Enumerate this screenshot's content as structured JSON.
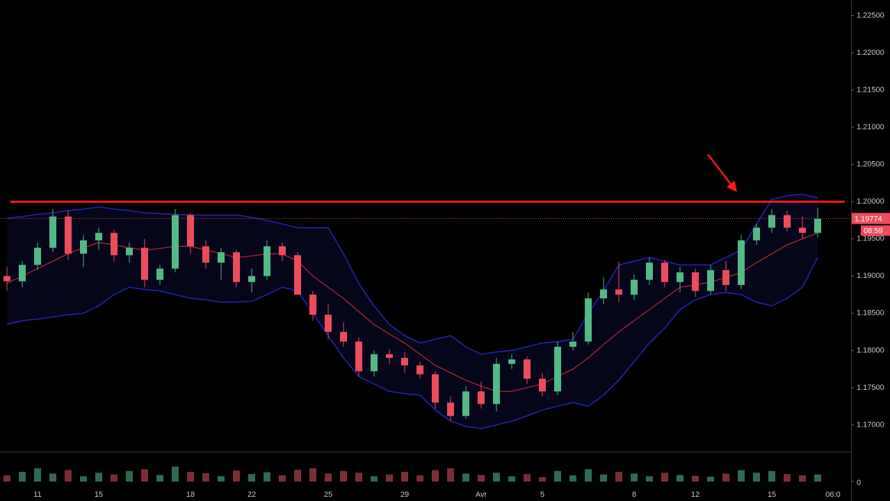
{
  "chart_data": {
    "type": "candlestick",
    "categories": [
      null,
      null,
      "11",
      null,
      null,
      null,
      "15",
      null,
      null,
      null,
      null,
      null,
      "18",
      null,
      null,
      null,
      "22",
      null,
      null,
      null,
      null,
      "25",
      null,
      null,
      null,
      null,
      "29",
      null,
      null,
      null,
      null,
      "Avr",
      null,
      null,
      null,
      "5",
      null,
      null,
      null,
      null,
      null,
      "8",
      null,
      null,
      null,
      "12",
      null,
      null,
      null,
      null,
      "15",
      null,
      null,
      null,
      "06:0"
    ],
    "open": [
      1.19,
      1.1893,
      1.1915,
      1.1938,
      1.198,
      1.193,
      1.1948,
      1.1958,
      1.1928,
      1.1938,
      1.1895,
      1.191,
      1.1982,
      1.194,
      1.1918,
      1.1932,
      1.1892,
      1.19,
      1.194,
      1.1928,
      1.1875,
      1.1848,
      1.1825,
      1.1812,
      1.1772,
      1.1795,
      1.179,
      1.178,
      1.1768,
      1.173,
      1.1712,
      1.1745,
      1.1728,
      1.1782,
      1.1788,
      1.1762,
      1.1745,
      1.1805,
      1.1812,
      1.187,
      1.1882,
      1.1875,
      1.1895,
      1.1918,
      1.1892,
      1.1905,
      1.188,
      1.1908,
      1.1888,
      1.1948,
      1.1965,
      1.1982,
      1.1965,
      1.1958,
      null
    ],
    "high": [
      1.1912,
      1.192,
      1.1945,
      1.199,
      1.1988,
      1.1955,
      1.1965,
      1.1962,
      1.1945,
      1.195,
      1.1915,
      1.199,
      1.1985,
      1.1948,
      1.1938,
      1.1935,
      1.191,
      1.1948,
      1.1945,
      1.1932,
      1.188,
      1.1862,
      1.1838,
      1.1818,
      1.18,
      1.1802,
      1.1798,
      1.1785,
      1.1772,
      1.1738,
      1.1752,
      1.1758,
      1.179,
      1.1795,
      1.1792,
      1.177,
      1.1812,
      1.1825,
      1.1878,
      1.1898,
      1.192,
      1.1902,
      1.1925,
      1.1922,
      1.1912,
      1.191,
      1.1915,
      1.192,
      1.1955,
      1.197,
      1.199,
      1.1988,
      1.198,
      1.1992,
      null
    ],
    "low": [
      1.188,
      1.1885,
      1.1908,
      1.1932,
      1.1922,
      1.1912,
      1.1935,
      1.192,
      1.1918,
      1.1885,
      1.1888,
      1.1905,
      1.193,
      1.191,
      1.1895,
      1.1885,
      1.1878,
      1.1895,
      1.192,
      1.188,
      1.184,
      1.1815,
      1.1805,
      1.1765,
      1.1765,
      1.1782,
      1.177,
      1.1762,
      1.1722,
      1.1705,
      1.1708,
      1.1722,
      1.1718,
      1.1775,
      1.1755,
      1.1738,
      1.174,
      1.18,
      1.1808,
      1.1862,
      1.1865,
      1.1868,
      1.1888,
      1.1885,
      1.1878,
      1.1872,
      1.1875,
      1.188,
      1.1882,
      1.1942,
      1.1958,
      1.196,
      1.195,
      1.1952,
      null
    ],
    "close": [
      1.1893,
      1.1915,
      1.1938,
      1.198,
      1.193,
      1.1948,
      1.1958,
      1.1928,
      1.1938,
      1.1895,
      1.191,
      1.1982,
      1.194,
      1.1918,
      1.1932,
      1.1892,
      1.19,
      1.194,
      1.1928,
      1.1875,
      1.1848,
      1.1825,
      1.1812,
      1.1772,
      1.1795,
      1.179,
      1.178,
      1.1768,
      1.173,
      1.1712,
      1.1745,
      1.1728,
      1.1782,
      1.1788,
      1.1762,
      1.1745,
      1.1805,
      1.1812,
      1.187,
      1.1882,
      1.1875,
      1.1895,
      1.1918,
      1.1892,
      1.1905,
      1.188,
      1.1908,
      1.1888,
      1.1948,
      1.1965,
      1.1982,
      1.1965,
      1.1958,
      1.1977,
      null
    ],
    "up_color": "#53b987",
    "down_color": "#eb4d5c",
    "ylim": [
      1.1664,
      1.2271
    ],
    "yticks": [
      {
        "value": 1.17,
        "label": "1.17000"
      },
      {
        "value": 1.175,
        "label": "1.17500"
      },
      {
        "value": 1.18,
        "label": "1.18000"
      },
      {
        "value": 1.185,
        "label": "1.18500"
      },
      {
        "value": 1.19,
        "label": "1.19000"
      },
      {
        "value": 1.195,
        "label": "1.19500"
      },
      {
        "value": 1.2,
        "label": "1.20000"
      },
      {
        "value": 1.205,
        "label": "1.20500"
      },
      {
        "value": 1.21,
        "label": "1.21000"
      },
      {
        "value": 1.215,
        "label": "1.21500"
      },
      {
        "value": 1.22,
        "label": "1.22000"
      },
      {
        "value": 1.225,
        "label": "1.22500"
      }
    ],
    "bollinger": {
      "upper": [
        1.1978,
        1.198,
        1.1983,
        1.1985,
        1.1988,
        1.199,
        1.1993,
        1.199,
        1.1988,
        1.1985,
        1.1984,
        1.1983,
        1.1982,
        1.1982,
        1.1982,
        1.1982,
        1.1979,
        1.1975,
        1.197,
        1.1965,
        1.1965,
        1.1965,
        1.193,
        1.189,
        1.186,
        1.1835,
        1.182,
        1.181,
        1.1815,
        1.182,
        1.1805,
        1.1795,
        1.1798,
        1.18,
        1.1805,
        1.181,
        1.1812,
        1.1815,
        1.185,
        1.188,
        1.1915,
        1.192,
        1.1925,
        1.192,
        1.1915,
        1.1915,
        1.1915,
        1.1925,
        1.1935,
        1.197,
        1.2003,
        1.2008,
        1.201,
        1.2005,
        null
      ],
      "middle": [
        1.189,
        1.19,
        1.191,
        1.192,
        1.193,
        1.1938,
        1.1945,
        1.1942,
        1.1938,
        1.1935,
        1.1937,
        1.194,
        1.194,
        1.1935,
        1.193,
        1.1925,
        1.1927,
        1.193,
        1.193,
        1.192,
        1.19,
        1.1885,
        1.187,
        1.1852,
        1.1835,
        1.1822,
        1.181,
        1.1795,
        1.178,
        1.177,
        1.176,
        1.1752,
        1.1745,
        1.1745,
        1.175,
        1.1755,
        1.1765,
        1.1775,
        1.179,
        1.1808,
        1.1825,
        1.184,
        1.1855,
        1.187,
        1.1885,
        1.1888,
        1.1892,
        1.1898,
        1.1905,
        1.1918,
        1.193,
        1.1942,
        1.195,
        1.1958,
        null
      ],
      "lower": [
        1.1835,
        1.184,
        1.1842,
        1.1845,
        1.1848,
        1.185,
        1.186,
        1.1875,
        1.1885,
        1.1882,
        1.188,
        1.1875,
        1.187,
        1.1868,
        1.1865,
        1.1865,
        1.1866,
        1.1875,
        1.1885,
        1.188,
        1.185,
        1.182,
        1.179,
        1.1765,
        1.1755,
        1.1745,
        1.1742,
        1.174,
        1.172,
        1.1705,
        1.1698,
        1.1695,
        1.17,
        1.1705,
        1.1712,
        1.172,
        1.1725,
        1.173,
        1.1725,
        1.174,
        1.176,
        1.1785,
        1.181,
        1.183,
        1.1855,
        1.1868,
        1.1875,
        1.1878,
        1.1875,
        1.1865,
        1.186,
        1.187,
        1.1885,
        1.1925,
        null
      ],
      "band_color": "#2525b8",
      "middle_color": "#b3262b"
    },
    "volume": {
      "values": [
        14,
        22,
        30,
        18,
        26,
        12,
        20,
        16,
        24,
        28,
        15,
        34,
        22,
        19,
        12,
        25,
        17,
        21,
        14,
        27,
        30,
        18,
        24,
        20,
        12,
        16,
        22,
        14,
        26,
        30,
        18,
        15,
        20,
        12,
        17,
        10,
        24,
        14,
        28,
        16,
        22,
        18,
        12,
        20,
        15,
        13,
        11,
        18,
        26,
        20,
        24,
        17,
        14,
        16,
        null
      ],
      "ylim": [
        0,
        60
      ],
      "yticks": [
        0
      ]
    },
    "resistance": {
      "value": 1.2,
      "color": "#ff1a1a"
    },
    "last_price": 1.19774,
    "countdown": "08:59"
  }
}
